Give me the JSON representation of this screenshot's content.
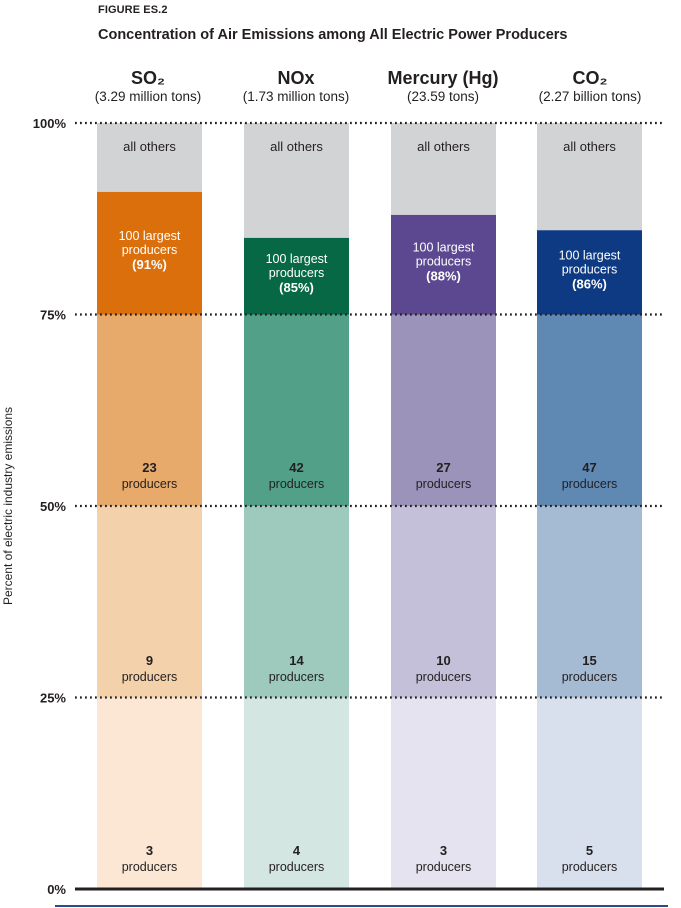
{
  "figure": {
    "label": "FIGURE ES.2",
    "title": "Concentration of Air Emissions among All Electric Power Producers"
  },
  "chart_data": {
    "type": "bar",
    "stacked": true,
    "title": "Concentration of Air Emissions among All Electric Power Producers",
    "ylabel": "Percent of electric industry emissions",
    "ylim": [
      0,
      100
    ],
    "y_ticks": [
      "0%",
      "25%",
      "50%",
      "75%",
      "100%"
    ],
    "y_tick_values": [
      0,
      25,
      50,
      75,
      100
    ],
    "grid": "dotted lines at 25%, 50%, 75%, 100%",
    "categories": [
      {
        "name": "SO₂",
        "total": "(3.29 million tons)"
      },
      {
        "name": "NOx",
        "total": "(1.73 million tons)"
      },
      {
        "name": "Mercury (Hg)",
        "total": "(23.59 tons)"
      },
      {
        "name": "CO₂",
        "total": "(2.27 billion tons)"
      }
    ],
    "segments": [
      {
        "label_num": [
          "3",
          "4",
          "3",
          "5"
        ],
        "label_text": "producers",
        "y_from": 0,
        "y_to": [
          25,
          25,
          25,
          25
        ]
      },
      {
        "label_num": [
          "9",
          "14",
          "10",
          "15"
        ],
        "label_text": "producers",
        "y_from": 25,
        "y_to": [
          50,
          50,
          50,
          50
        ]
      },
      {
        "label_num": [
          "23",
          "42",
          "27",
          "47"
        ],
        "label_text": "producers",
        "y_from": 50,
        "y_to": [
          75,
          75,
          75,
          75
        ]
      },
      {
        "label_text": "100 largest producers",
        "pct_labels": [
          "(91%)",
          "(85%)",
          "(88%)",
          "(86%)"
        ],
        "y_from": 75,
        "y_to": [
          91,
          85,
          88,
          86
        ]
      },
      {
        "label_text": "all others",
        "y_to": [
          100,
          100,
          100,
          100
        ]
      }
    ],
    "values_top100_pct": [
      91,
      85,
      88,
      86
    ],
    "colors": {
      "SO2": [
        "#fbe7d4",
        "#f2d1ab",
        "#e8aa6a",
        "#db6f0c"
      ],
      "NOx": [
        "#d3e6e1",
        "#9ecabd",
        "#52a088",
        "#076846"
      ],
      "Hg": [
        "#e5e3ef",
        "#c4c0d9",
        "#9b93ba",
        "#5b4890"
      ],
      "CO2": [
        "#d7e0ec",
        "#a5bad3",
        "#5f88b2",
        "#0d3a83"
      ],
      "all_others": "#d2d3d5"
    }
  }
}
